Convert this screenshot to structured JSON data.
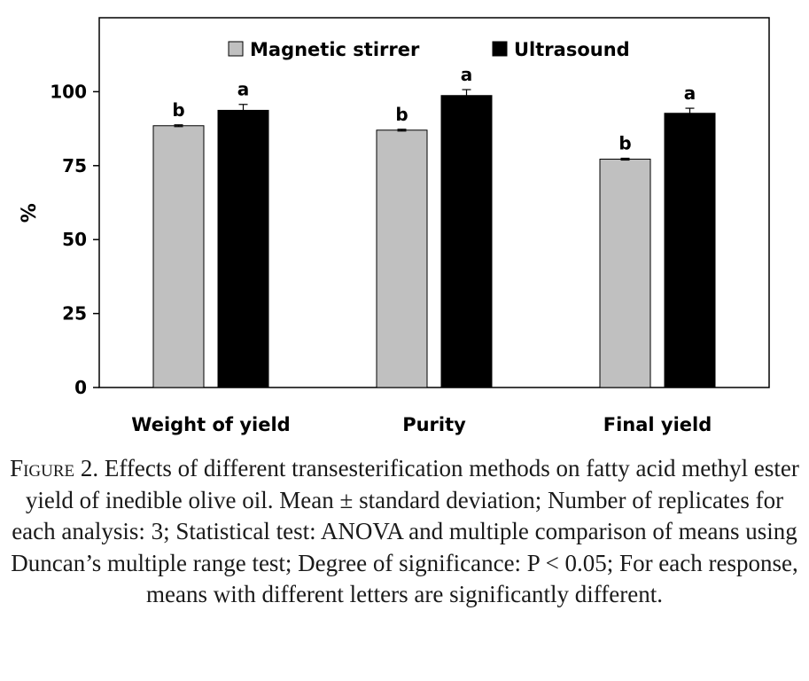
{
  "chart_data": {
    "type": "bar",
    "categories": [
      "Weight of yield",
      "Purity",
      "Final yield"
    ],
    "series": [
      {
        "name": "Magnetic stirrer",
        "values": [
          88.5,
          87,
          77.2
        ],
        "errors": [
          0.3,
          0.3,
          0.3
        ],
        "letters": [
          "b",
          "b",
          "b"
        ],
        "color": "#c0c0c0"
      },
      {
        "name": "Ultrasound",
        "values": [
          93.7,
          98.7,
          92.7
        ],
        "errors": [
          2,
          2,
          1.7
        ],
        "letters": [
          "a",
          "a",
          "a"
        ],
        "color": "#000000"
      }
    ],
    "ylabel": "%",
    "ylim": [
      0,
      125
    ],
    "yticks": [
      0,
      25,
      50,
      75,
      100
    ],
    "legend_position": "top"
  },
  "caption": {
    "label": "Figure 2.",
    "text": " Effects of different transesterification methods on fatty acid methyl ester yield of inedible olive oil. Mean ± standard deviation; Number of replicates for each analysis: 3; Statistical test: ANOVA and multiple comparison of means using Duncan’s multiple range test; Degree of significance: P < 0.05; For each response, means with different letters are significantly different."
  }
}
